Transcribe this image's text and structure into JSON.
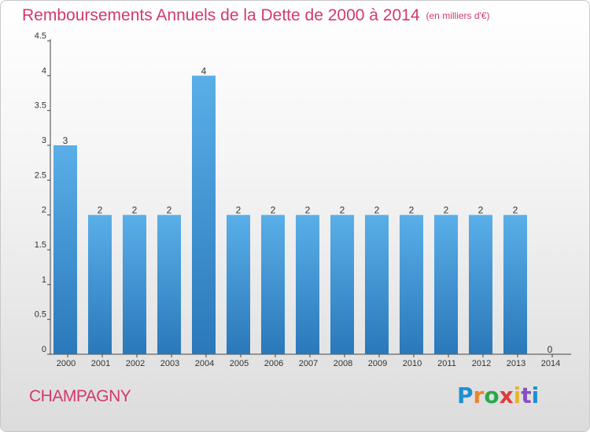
{
  "title": "Remboursements Annuels de la Dette de 2000 à 2014",
  "unit": "(en milliers d'€)",
  "city": "CHAMPAGNY",
  "brand": "Proxiti",
  "colors": {
    "title": "#d2396e",
    "bar_top": "#5aafe8",
    "bar_bottom": "#2a78ba",
    "axis": "#444444"
  },
  "chart_data": {
    "type": "bar",
    "categories": [
      "2000",
      "2001",
      "2002",
      "2003",
      "2004",
      "2005",
      "2006",
      "2007",
      "2008",
      "2009",
      "2010",
      "2011",
      "2012",
      "2013",
      "2014"
    ],
    "values": [
      3,
      2,
      2,
      2,
      4,
      2,
      2,
      2,
      2,
      2,
      2,
      2,
      2,
      2,
      0
    ],
    "data_labels": [
      "3",
      "2",
      "2",
      "2",
      "4",
      "2",
      "2",
      "2",
      "2",
      "2",
      "2",
      "2",
      "2",
      "2",
      "0"
    ],
    "ylim": [
      0,
      4.5
    ],
    "yticks": [
      0,
      0.5,
      1,
      1.5,
      2,
      2.5,
      3,
      3.5,
      4,
      4.5
    ],
    "ytick_labels": [
      "0",
      "0.5",
      "1",
      "1.5",
      "2",
      "2.5",
      "3",
      "3.5",
      "4",
      "4.5"
    ],
    "grid": false,
    "legend": "none"
  }
}
